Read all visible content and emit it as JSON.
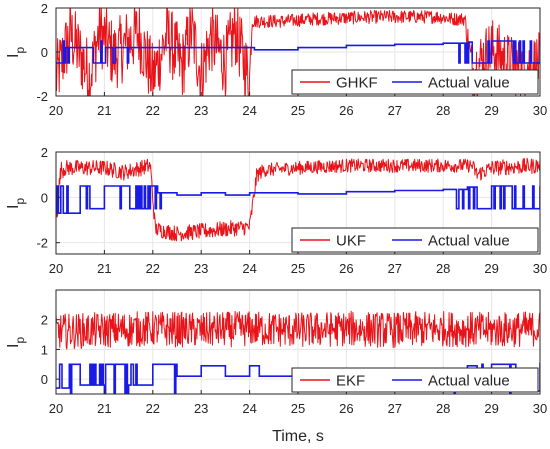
{
  "figure": {
    "xlabel": "Time, s"
  },
  "colors": {
    "estimate": "#e8141a",
    "actual": "#1a1ae6",
    "grid": "#e6e6e6",
    "axis": "#262626"
  },
  "chart_data": [
    {
      "type": "line",
      "ylabel": "I",
      "ylabel_sub": "p",
      "xlim": [
        20,
        30
      ],
      "ylim": [
        -2,
        2
      ],
      "xticks": [
        "20",
        "21",
        "22",
        "23",
        "24",
        "25",
        "26",
        "27",
        "28",
        "29",
        "30"
      ],
      "yticks": [
        "-2",
        "0",
        "2"
      ],
      "grid": true,
      "legend_position": "bottom-right",
      "series": [
        {
          "name": "GHKF",
          "color": "#e8141a",
          "style": "noisy",
          "x": [
            20.0,
            20.3,
            20.7,
            20.9,
            21.2,
            21.7,
            22.0,
            22.3,
            22.6,
            22.8,
            23.0,
            23.2,
            23.5,
            23.7,
            24.0,
            24.05,
            24.7,
            25.3,
            26.0,
            26.7,
            27.3,
            27.9,
            28.2,
            28.45,
            28.6,
            29.0,
            29.5,
            30.0
          ],
          "y": [
            -1.2,
            0.8,
            -1.1,
            1.0,
            -0.2,
            0.9,
            -1.2,
            0.8,
            -0.7,
            1.0,
            -1.0,
            0.7,
            -0.5,
            1.0,
            -1.3,
            1.4,
            1.4,
            1.5,
            1.55,
            1.6,
            1.6,
            1.6,
            1.5,
            1.5,
            -0.9,
            0.2,
            -0.8,
            -0.5
          ],
          "amplitude": [
            1.6,
            1.6,
            1.6,
            1.6,
            1.6,
            1.6,
            1.6,
            1.6,
            1.6,
            1.6,
            1.6,
            1.6,
            1.6,
            1.6,
            1.6,
            0.3,
            0.3,
            0.3,
            0.3,
            0.3,
            0.3,
            0.3,
            0.3,
            0.3,
            1.4,
            1.4,
            1.4,
            1.4
          ]
        },
        {
          "name": "Actual value",
          "color": "#1a1ae6",
          "style": "step",
          "x": [
            20.0,
            20.2,
            20.8,
            21.0,
            21.5,
            22.0,
            22.5,
            23.0,
            23.5,
            24.0,
            24.1,
            25.0,
            26.0,
            27.0,
            28.0,
            28.5,
            28.6,
            29.0,
            29.5,
            30.0
          ],
          "y": [
            -0.5,
            0.2,
            -0.5,
            0.2,
            0.2,
            0.2,
            0.2,
            0.2,
            0.2,
            0.2,
            0.1,
            0.2,
            0.3,
            0.35,
            0.4,
            0.45,
            -0.5,
            0.5,
            -0.5,
            0.5
          ]
        }
      ]
    },
    {
      "type": "line",
      "ylabel": "I",
      "ylabel_sub": "p",
      "xlim": [
        20,
        30
      ],
      "ylim": [
        -2.5,
        2
      ],
      "xticks": [
        "20",
        "21",
        "22",
        "23",
        "24",
        "25",
        "26",
        "27",
        "28",
        "29",
        "30"
      ],
      "yticks": [
        "-2",
        "0",
        "2"
      ],
      "grid": true,
      "legend_position": "bottom-right",
      "series": [
        {
          "name": "UKF",
          "color": "#e8141a",
          "style": "noisy",
          "x": [
            20.0,
            20.1,
            20.2,
            21.0,
            21.4,
            21.95,
            22.05,
            22.5,
            23.0,
            23.5,
            24.0,
            24.15,
            24.3,
            25.0,
            26.0,
            27.0,
            28.0,
            28.6,
            28.7,
            29.0,
            30.0
          ],
          "y": [
            -1.0,
            1.2,
            1.3,
            1.3,
            1.1,
            1.4,
            -1.4,
            -1.6,
            -1.5,
            -1.4,
            -1.3,
            1.0,
            1.2,
            1.3,
            1.4,
            1.4,
            1.4,
            1.4,
            1.0,
            1.3,
            1.4
          ],
          "amplitude": [
            0.8,
            0.4,
            0.35,
            0.35,
            0.35,
            0.35,
            0.35,
            0.35,
            0.35,
            0.35,
            0.35,
            0.35,
            0.3,
            0.3,
            0.3,
            0.3,
            0.3,
            0.3,
            0.35,
            0.35,
            0.35
          ]
        },
        {
          "name": "Actual value",
          "color": "#1a1ae6",
          "style": "step",
          "x": [
            20.0,
            20.5,
            20.7,
            21.0,
            21.5,
            21.9,
            22.1,
            22.5,
            23.0,
            23.5,
            24.0,
            24.2,
            25.0,
            26.0,
            27.0,
            28.0,
            28.5,
            28.7,
            29.0,
            29.5,
            30.0
          ],
          "y": [
            -0.7,
            0.5,
            -0.5,
            0.5,
            -0.5,
            0.5,
            0.2,
            0.1,
            0.2,
            0.1,
            0.2,
            0.2,
            0.15,
            0.25,
            0.3,
            0.35,
            0.45,
            -0.5,
            0.5,
            -0.5,
            0.5
          ]
        }
      ]
    },
    {
      "type": "line",
      "ylabel": "I",
      "ylabel_sub": "p",
      "xlim": [
        20,
        30
      ],
      "ylim": [
        -0.5,
        3
      ],
      "xticks": [
        "20",
        "21",
        "22",
        "23",
        "24",
        "25",
        "26",
        "27",
        "28",
        "29",
        "30"
      ],
      "yticks": [
        "0",
        "1",
        "2"
      ],
      "grid": true,
      "legend_position": "bottom-right",
      "series": [
        {
          "name": "EKF",
          "color": "#e8141a",
          "style": "noisy",
          "x": [
            20.0,
            21.0,
            22.0,
            23.0,
            24.0,
            25.0,
            26.0,
            27.0,
            28.0,
            29.0,
            30.0
          ],
          "y": [
            1.6,
            1.65,
            1.7,
            1.65,
            1.7,
            1.65,
            1.7,
            1.65,
            1.7,
            1.65,
            1.7
          ],
          "amplitude": [
            0.6,
            0.6,
            0.6,
            0.6,
            0.6,
            0.6,
            0.6,
            0.6,
            0.6,
            0.6,
            0.6
          ]
        },
        {
          "name": "Actual value",
          "color": "#1a1ae6",
          "style": "step",
          "x": [
            20.0,
            20.3,
            20.5,
            21.0,
            21.5,
            22.0,
            22.5,
            23.0,
            23.5,
            24.0,
            24.2,
            25.0,
            26.0,
            27.0,
            28.0,
            28.5,
            28.7,
            29.0,
            29.5,
            30.0
          ],
          "y": [
            -0.3,
            0.5,
            -0.2,
            0.5,
            -0.2,
            0.5,
            0.1,
            0.45,
            0.1,
            0.45,
            0.1,
            0.15,
            0.2,
            0.25,
            0.3,
            0.45,
            -0.4,
            0.5,
            -0.4,
            0.55
          ]
        }
      ]
    }
  ]
}
